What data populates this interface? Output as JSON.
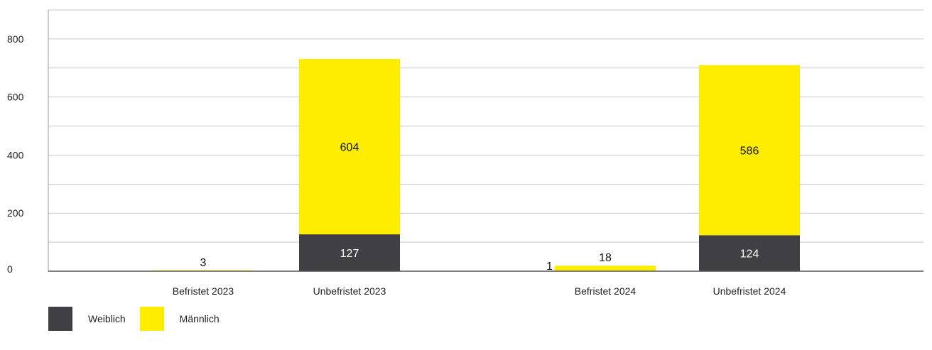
{
  "chart_data": {
    "type": "bar",
    "stacked": true,
    "categories": [
      "Befristet 2023",
      "Unbefristet 2023",
      "Befristet 2024",
      "Unbefristet 2024"
    ],
    "series": [
      {
        "name": "Weiblich",
        "color": "#404044",
        "values": [
          0,
          127,
          1,
          124
        ],
        "labels": [
          "",
          "127",
          "1",
          "124"
        ]
      },
      {
        "name": "Männlich",
        "color": "#ffed00",
        "values": [
          3,
          604,
          18,
          586
        ],
        "labels": [
          "3",
          "604",
          "18",
          "586"
        ]
      }
    ],
    "yticks": [
      0,
      200,
      400,
      600,
      800
    ],
    "ylim": [
      0,
      900
    ],
    "grid": true,
    "legend_position": "bottom-left",
    "title": "",
    "xlabel": "",
    "ylabel": ""
  }
}
